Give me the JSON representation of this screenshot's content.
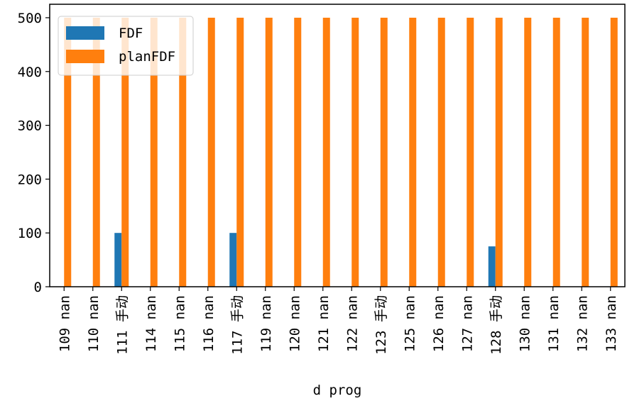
{
  "chart_data": {
    "type": "bar",
    "title": "",
    "xlabel": "d prog",
    "ylabel": "",
    "ylim": [
      0,
      525
    ],
    "yticks": [
      0,
      100,
      200,
      300,
      400,
      500
    ],
    "grid": false,
    "legend_position": "upper-left",
    "categories": [
      "109 nan",
      "110 nan",
      "111 手动",
      "114 nan",
      "115 nan",
      "116 nan",
      "117 手动",
      "119 nan",
      "120 nan",
      "121 nan",
      "122 nan",
      "123 手动",
      "125 nan",
      "126 nan",
      "127 nan",
      "128 手动",
      "130 nan",
      "131 nan",
      "132 nan",
      "133 nan"
    ],
    "series": [
      {
        "name": "FDF",
        "color": "#1f77b4",
        "values": [
          0,
          0,
          100,
          0,
          0,
          0,
          100,
          0,
          0,
          0,
          0,
          0,
          0,
          0,
          0,
          75,
          0,
          0,
          0,
          0
        ]
      },
      {
        "name": "planFDF",
        "color": "#ff7f0e",
        "values": [
          500,
          500,
          500,
          500,
          500,
          500,
          500,
          500,
          500,
          500,
          500,
          500,
          500,
          500,
          500,
          500,
          500,
          500,
          500,
          500
        ]
      }
    ]
  }
}
